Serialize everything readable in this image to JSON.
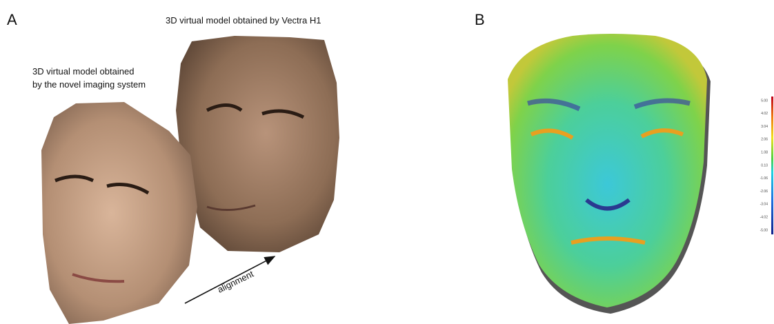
{
  "panel_a": {
    "label": "A",
    "caption_top": "3D virtual model obtained by Vectra H1",
    "caption_left": [
      "3D virtual model obtained",
      "by the novel imaging system"
    ],
    "arrow_label": "alignment"
  },
  "panel_b": {
    "label": "B",
    "colorbar": {
      "labels": [
        "5.00",
        "4.02",
        "3.04",
        "2.06",
        "1.08",
        "0.10",
        "-1.06",
        "-2.06",
        "-3.04",
        "-4.02",
        "-5.00"
      ]
    }
  }
}
